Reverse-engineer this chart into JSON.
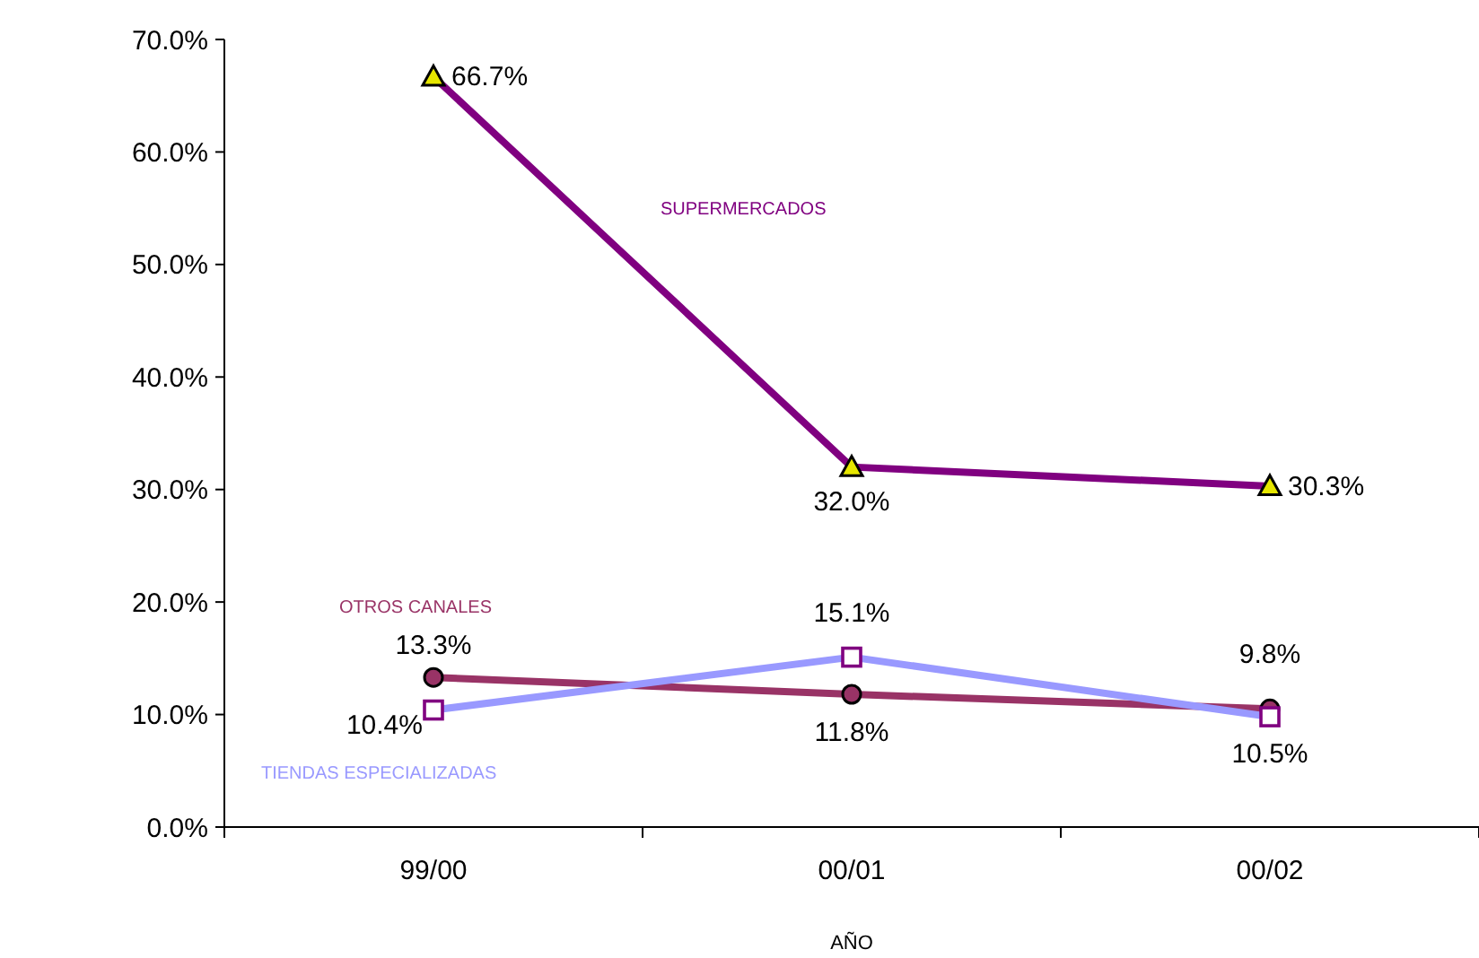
{
  "chart_data": {
    "type": "line",
    "xlabel": "AÑO",
    "categories": [
      "99/00",
      "00/01",
      "00/02"
    ],
    "series": [
      {
        "name": "SUPERMERCADOS",
        "color": "#800080",
        "marker": "triangle",
        "values": [
          66.7,
          32.0,
          30.3
        ],
        "value_labels": [
          "66.7%",
          "32.0%",
          "30.3%"
        ]
      },
      {
        "name": "OTROS CANALES",
        "color": "#993366",
        "marker": "circle",
        "values": [
          13.3,
          11.8,
          10.5
        ],
        "value_labels": [
          "13.3%",
          "11.8%",
          "10.5%"
        ]
      },
      {
        "name": "TIENDAS ESPECIALIZADAS",
        "color": "#9999ff",
        "marker": "square",
        "values": [
          10.4,
          15.1,
          9.8
        ],
        "value_labels": [
          "10.4%",
          "15.1%",
          "9.8%"
        ]
      }
    ],
    "ylim": [
      0,
      70
    ],
    "yticks": [
      {
        "value": 0,
        "label": "0.0%"
      },
      {
        "value": 10,
        "label": "10.0%"
      },
      {
        "value": 20,
        "label": "20.0%"
      },
      {
        "value": 30,
        "label": "30.0%"
      },
      {
        "value": 40,
        "label": "40.0%"
      },
      {
        "value": 50,
        "label": "50.0%"
      },
      {
        "value": 60,
        "label": "60.0%"
      },
      {
        "value": 70,
        "label": "70.0%"
      }
    ],
    "grid": false,
    "line_style": "solid"
  }
}
